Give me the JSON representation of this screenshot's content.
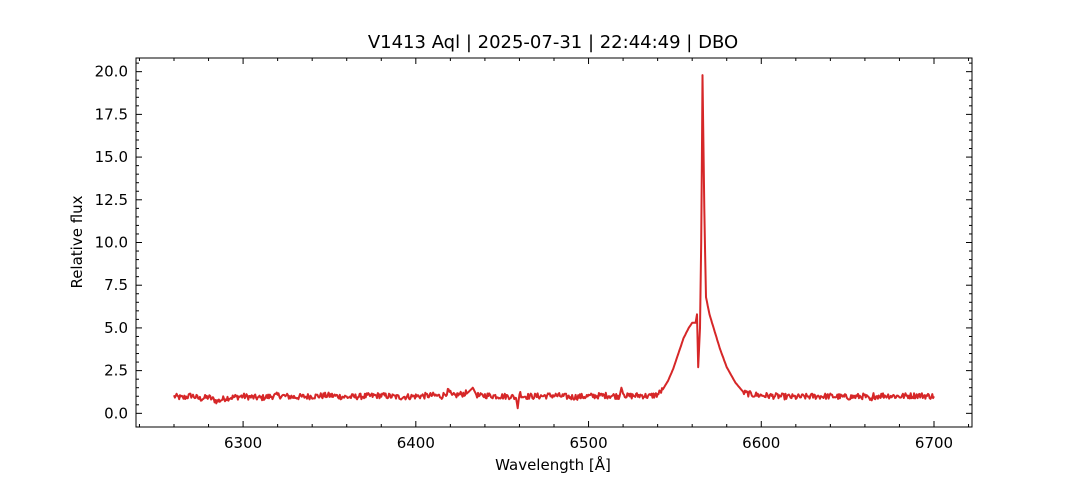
{
  "chart_data": {
    "type": "line",
    "title": "V1413 Aql | 2025-07-31 | 22:44:49 | DBO",
    "xlabel": "Wavelength [Å]",
    "ylabel": "Relative flux",
    "xlim": [
      6238,
      6722
    ],
    "ylim": [
      -0.8,
      20.8
    ],
    "xticks": [
      "6300",
      "6400",
      "6500",
      "6600",
      "6700"
    ],
    "yticks": [
      "0.0",
      "2.5",
      "5.0",
      "7.5",
      "10.0",
      "12.5",
      "15.0",
      "17.5",
      "20.0"
    ],
    "grid": false,
    "legend": false,
    "series": [
      {
        "color": "#d62728",
        "x": [
          6260,
          6265,
          6270,
          6275,
          6280,
          6285,
          6290,
          6300,
          6310,
          6320,
          6330,
          6340,
          6350,
          6360,
          6370,
          6380,
          6390,
          6400,
          6410,
          6415,
          6419,
          6421,
          6425,
          6430,
          6433,
          6435,
          6437,
          6440,
          6450,
          6455,
          6458,
          6459,
          6460,
          6462,
          6470,
          6480,
          6490,
          6500,
          6510,
          6518,
          6519,
          6520,
          6522,
          6530,
          6535,
          6540,
          6543,
          6546,
          6549,
          6552,
          6555,
          6558,
          6560,
          6562,
          6562.8,
          6563.5,
          6564.5,
          6565.2,
          6566,
          6567,
          6568,
          6570,
          6573,
          6576,
          6580,
          6585,
          6590,
          6595,
          6600,
          6610,
          6620,
          6630,
          6640,
          6650,
          6660,
          6664,
          6665,
          6666,
          6670,
          6680,
          6690,
          6700
        ],
        "y": [
          1.0,
          0.9,
          1.05,
          0.85,
          0.95,
          0.7,
          0.9,
          1.0,
          0.9,
          1.05,
          0.95,
          1.0,
          1.05,
          0.95,
          1.0,
          1.05,
          0.95,
          1.0,
          1.05,
          1.0,
          1.3,
          1.0,
          1.1,
          1.2,
          1.5,
          1.1,
          1.0,
          1.05,
          1.0,
          1.0,
          0.9,
          0.3,
          1.2,
          1.0,
          1.0,
          1.05,
          0.95,
          1.0,
          1.05,
          1.0,
          1.5,
          1.2,
          1.0,
          1.05,
          1.0,
          1.1,
          1.4,
          1.9,
          2.6,
          3.5,
          4.4,
          5.0,
          5.3,
          5.3,
          5.8,
          2.7,
          5.0,
          10.0,
          19.8,
          12.0,
          6.8,
          5.8,
          4.8,
          3.8,
          2.7,
          1.8,
          1.2,
          1.1,
          1.05,
          1.0,
          0.95,
          1.0,
          1.0,
          0.95,
          1.0,
          0.7,
          1.05,
          1.0,
          1.05,
          1.0,
          1.05,
          1.0
        ]
      }
    ]
  }
}
